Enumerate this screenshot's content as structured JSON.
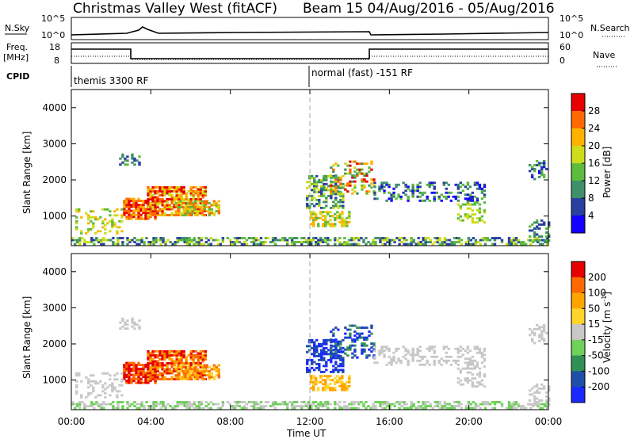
{
  "header": {
    "title": "Christmas Valley West (fitACF)",
    "subtitle": "Beam 15 04/Aug/2016 - 05/Aug/2016"
  },
  "strip_panels": {
    "nsky_label": "N.Sky",
    "nsky_ticks": [
      "10^5",
      "10^0"
    ],
    "nsearch_label": "N.Search",
    "nsearch_ticks": [
      "10^5",
      "10^0"
    ],
    "freq_label_1": "Freq.",
    "freq_label_2": "[MHz]",
    "freq_ticks": [
      "18",
      "8"
    ],
    "nave_label": "Nave",
    "nave_ticks": [
      "60",
      "0"
    ],
    "cpid_label": "CPID",
    "cpid_segments": [
      "themis 3300 RF",
      "normal (fast) -151 RF"
    ]
  },
  "colors": {
    "power": [
      "#1400ff",
      "#2a3fa0",
      "#3f8f6a",
      "#5dbb3e",
      "#cddc1b",
      "#ffb200",
      "#ff6a00",
      "#e60000"
    ],
    "velocity": [
      "#1a2aff",
      "#1f4fa8",
      "#2f8f55",
      "#6fd05a",
      "#c8c8c8",
      "#ffd52a",
      "#ffa500",
      "#ff6a00",
      "#e60000"
    ],
    "ground_scatter": "#bebebe"
  },
  "chart_data": [
    {
      "type": "heatmap",
      "title": "Power",
      "xlabel": "",
      "ylabel": "Slant Range [km]",
      "xlim": [
        "00:00",
        "24:00"
      ],
      "ylim": [
        180,
        4500
      ],
      "y_ticks": [
        "4000",
        "3000",
        "2000",
        "1000"
      ],
      "x_ticks": [
        "00:00",
        "04:00",
        "08:00",
        "12:00",
        "16:00",
        "20:00",
        "00:00"
      ],
      "colorbar": {
        "label": "Power [dB]",
        "ticks": [
          "28",
          "24",
          "20",
          "16",
          "12",
          "8",
          "4"
        ],
        "range": [
          0,
          30
        ]
      }
    },
    {
      "type": "heatmap",
      "title": "Velocity",
      "xlabel": "Time UT",
      "ylabel": "Slant Range [km]",
      "xlim": [
        "00:00",
        "24:00"
      ],
      "ylim": [
        180,
        4500
      ],
      "y_ticks": [
        "4000",
        "3000",
        "2000",
        "1000"
      ],
      "x_ticks": [
        "00:00",
        "04:00",
        "08:00",
        "12:00",
        "16:00",
        "20:00",
        "00:00"
      ],
      "colorbar": {
        "label": "Velocity [m s^-1]",
        "ticks": [
          "200",
          "100",
          "50",
          "15",
          "-15",
          "-50",
          "-100",
          "-200"
        ],
        "range": [
          -250,
          250
        ]
      }
    }
  ]
}
